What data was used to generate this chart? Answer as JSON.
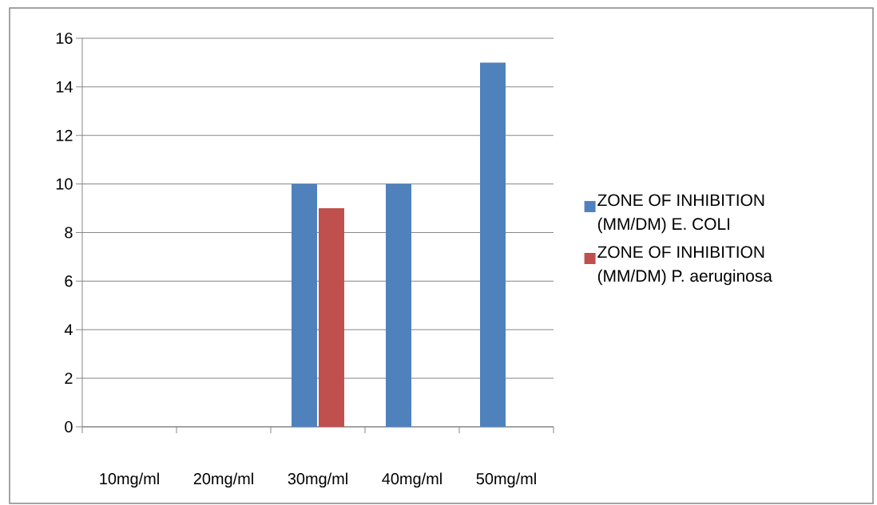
{
  "chart_data": {
    "type": "bar",
    "categories": [
      "10mg/ml",
      "20mg/ml",
      "30mg/ml",
      "40mg/ml",
      "50mg/ml"
    ],
    "series": [
      {
        "name": "ZONE OF INHIBITION (MM/DM) E. COLI",
        "color": "#4f81bd",
        "values": [
          null,
          null,
          10,
          10,
          15
        ]
      },
      {
        "name": "ZONE OF INHIBITION (MM/DM) P. aeruginosa",
        "color": "#c0504d",
        "values": [
          null,
          null,
          9,
          null,
          null
        ]
      }
    ],
    "ylim": [
      0,
      16
    ],
    "yticks": [
      0,
      2,
      4,
      6,
      8,
      10,
      12,
      14,
      16
    ],
    "grid": "y",
    "legend": "right"
  }
}
